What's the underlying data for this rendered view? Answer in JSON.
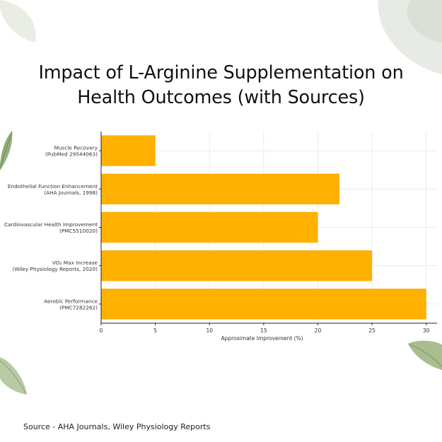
{
  "title_lines": [
    "Impact of L-Arginine Supplementation on",
    "Health Outcomes (with Sources)"
  ],
  "source_text": "Source - AHA Journals, Wiley Physiology Reports",
  "colors": {
    "bar": "#FFB000",
    "grid": "#e6e6e6",
    "axis": "#222222",
    "leaf": "#8fa878"
  },
  "chart_data": {
    "type": "bar",
    "orientation": "horizontal",
    "title": "Impact of L-Arginine Supplementation on Health Outcomes (with Sources)",
    "xlabel": "Approximate Improvement (%)",
    "ylabel": "",
    "xlim": [
      0,
      31
    ],
    "xticks": [
      0,
      5,
      10,
      15,
      20,
      25,
      30
    ],
    "grid": true,
    "categories": [
      [
        "Muscle Recovery",
        "(PubMed 29544063)"
      ],
      [
        "Endothelial Function Enhancement",
        "(AHA Journals, 1998)"
      ],
      [
        "Cardiovascular Health Improvement",
        "(PMC5510020)"
      ],
      [
        "VO₂ Max Increase",
        "(Wiley Physiology Reports, 2020)"
      ],
      [
        "Aerobic Performance",
        "(PMC7282262)"
      ]
    ],
    "values": [
      5,
      22,
      20,
      25,
      30
    ]
  }
}
